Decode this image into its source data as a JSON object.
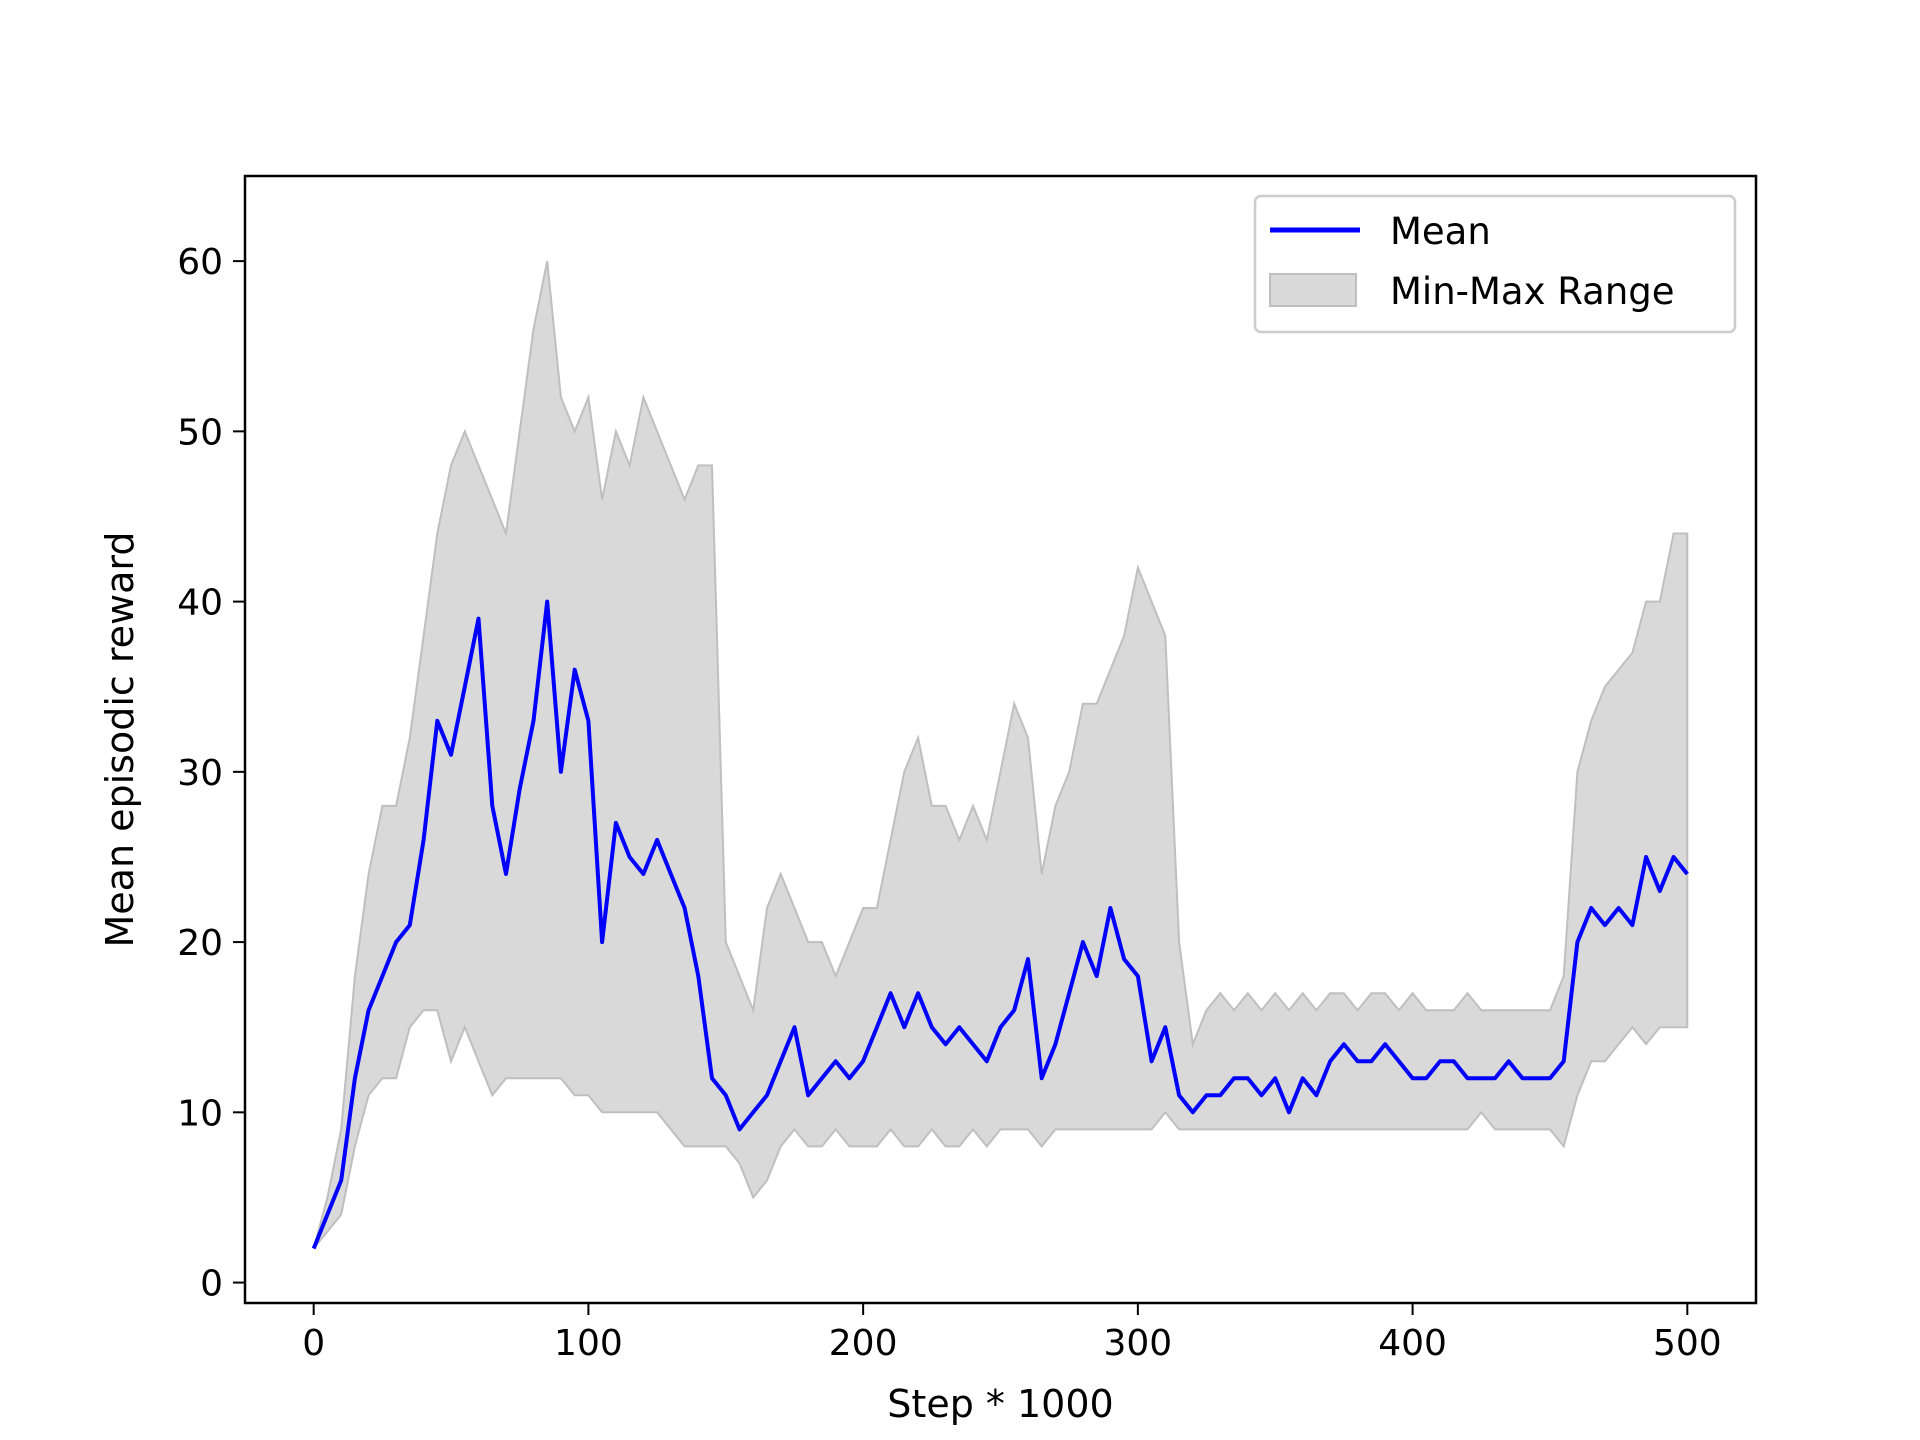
{
  "chart_data": {
    "type": "line",
    "title": "",
    "xlabel": "Step * 1000",
    "ylabel": "Mean episodic reward",
    "xlim": [
      -25,
      525
    ],
    "ylim": [
      -1.2,
      65
    ],
    "x_ticks": [
      0,
      100,
      200,
      300,
      400,
      500
    ],
    "y_ticks": [
      0,
      10,
      20,
      30,
      40,
      50,
      60
    ],
    "grid": false,
    "legend_position": "top-right",
    "colors": {
      "mean": "#0000ff",
      "range_fill": "#d9d9d9",
      "range_edge": "#bfbfbf"
    },
    "series": [
      {
        "name": "Mean",
        "kind": "line",
        "x": [
          0,
          5,
          10,
          15,
          20,
          25,
          30,
          35,
          40,
          45,
          50,
          55,
          60,
          65,
          70,
          75,
          80,
          85,
          90,
          95,
          100,
          105,
          110,
          115,
          120,
          125,
          130,
          135,
          140,
          145,
          150,
          155,
          160,
          165,
          170,
          175,
          180,
          185,
          190,
          195,
          200,
          205,
          210,
          215,
          220,
          225,
          230,
          235,
          240,
          245,
          250,
          255,
          260,
          265,
          270,
          275,
          280,
          285,
          290,
          295,
          300,
          305,
          310,
          315,
          320,
          325,
          330,
          335,
          340,
          345,
          350,
          355,
          360,
          365,
          370,
          375,
          380,
          385,
          390,
          395,
          400,
          405,
          410,
          415,
          420,
          425,
          430,
          435,
          440,
          445,
          450,
          455,
          460,
          465,
          470,
          475,
          480,
          485,
          490,
          495,
          500
        ],
        "y": [
          2,
          4,
          6,
          12,
          16,
          18,
          20,
          21,
          26,
          33,
          31,
          35,
          39,
          28,
          24,
          29,
          33,
          40,
          30,
          36,
          33,
          20,
          27,
          25,
          24,
          26,
          24,
          22,
          18,
          12,
          11,
          9,
          10,
          11,
          13,
          15,
          11,
          12,
          13,
          12,
          13,
          15,
          17,
          15,
          17,
          15,
          14,
          15,
          14,
          13,
          15,
          16,
          19,
          12,
          14,
          17,
          20,
          18,
          22,
          19,
          18,
          13,
          15,
          11,
          10,
          11,
          11,
          12,
          12,
          11,
          12,
          10,
          12,
          11,
          13,
          14,
          13,
          13,
          14,
          13,
          12,
          12,
          13,
          13,
          12,
          12,
          12,
          13,
          12,
          12,
          12,
          13,
          20,
          22,
          21,
          22,
          21,
          25,
          23,
          25,
          24
        ]
      },
      {
        "name": "Min-Max Range",
        "kind": "band",
        "x": [
          0,
          5,
          10,
          15,
          20,
          25,
          30,
          35,
          40,
          45,
          50,
          55,
          60,
          65,
          70,
          75,
          80,
          85,
          90,
          95,
          100,
          105,
          110,
          115,
          120,
          125,
          130,
          135,
          140,
          145,
          150,
          155,
          160,
          165,
          170,
          175,
          180,
          185,
          190,
          195,
          200,
          205,
          210,
          215,
          220,
          225,
          230,
          235,
          240,
          245,
          250,
          255,
          260,
          265,
          270,
          275,
          280,
          285,
          290,
          295,
          300,
          305,
          310,
          315,
          320,
          325,
          330,
          335,
          340,
          345,
          350,
          355,
          360,
          365,
          370,
          375,
          380,
          385,
          390,
          395,
          400,
          405,
          410,
          415,
          420,
          425,
          430,
          435,
          440,
          445,
          450,
          455,
          460,
          465,
          470,
          475,
          480,
          485,
          490,
          495,
          500
        ],
        "min": [
          2,
          3,
          4,
          8,
          11,
          12,
          12,
          15,
          16,
          16,
          13,
          15,
          13,
          11,
          12,
          12,
          12,
          12,
          12,
          11,
          11,
          10,
          10,
          10,
          10,
          10,
          9,
          8,
          8,
          8,
          8,
          7,
          5,
          6,
          8,
          9,
          8,
          8,
          9,
          8,
          8,
          8,
          9,
          8,
          8,
          9,
          8,
          8,
          9,
          8,
          9,
          9,
          9,
          8,
          9,
          9,
          9,
          9,
          9,
          9,
          9,
          9,
          10,
          9,
          9,
          9,
          9,
          9,
          9,
          9,
          9,
          9,
          9,
          9,
          9,
          9,
          9,
          9,
          9,
          9,
          9,
          9,
          9,
          9,
          9,
          10,
          9,
          9,
          9,
          9,
          9,
          8,
          11,
          13,
          13,
          14,
          15,
          14,
          15,
          15,
          15
        ],
        "max": [
          2,
          5,
          9,
          18,
          24,
          28,
          28,
          32,
          38,
          44,
          48,
          50,
          48,
          46,
          44,
          50,
          56,
          60,
          52,
          50,
          52,
          46,
          50,
          48,
          52,
          50,
          48,
          46,
          48,
          48,
          20,
          18,
          16,
          22,
          24,
          22,
          20,
          20,
          18,
          20,
          22,
          22,
          26,
          30,
          32,
          28,
          28,
          26,
          28,
          26,
          30,
          34,
          32,
          24,
          28,
          30,
          34,
          34,
          36,
          38,
          42,
          40,
          38,
          20,
          14,
          16,
          17,
          16,
          17,
          16,
          17,
          16,
          17,
          16,
          17,
          17,
          16,
          17,
          17,
          16,
          17,
          16,
          16,
          16,
          17,
          16,
          16,
          16,
          16,
          16,
          16,
          18,
          30,
          33,
          35,
          36,
          37,
          40,
          40,
          44,
          44
        ]
      }
    ]
  }
}
